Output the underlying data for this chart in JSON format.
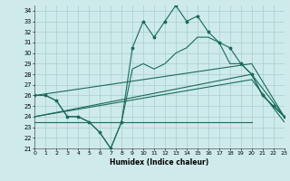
{
  "title": "",
  "xlabel": "Humidex (Indice chaleur)",
  "xlim": [
    0,
    23
  ],
  "ylim": [
    21,
    34.5
  ],
  "yticks": [
    21,
    22,
    23,
    24,
    25,
    26,
    27,
    28,
    29,
    30,
    31,
    32,
    33,
    34
  ],
  "xticks": [
    0,
    1,
    2,
    3,
    4,
    5,
    6,
    7,
    8,
    9,
    10,
    11,
    12,
    13,
    14,
    15,
    16,
    17,
    18,
    19,
    20,
    21,
    22,
    23
  ],
  "bg_color": "#ceeaea",
  "grid_color": "#aacece",
  "line_color": "#1a6b5a",
  "line1_x": [
    0,
    1,
    2,
    3,
    4,
    5,
    6,
    7,
    8,
    9,
    10,
    11,
    12,
    13,
    14,
    15,
    16,
    17,
    18,
    19,
    20,
    21,
    22,
    23
  ],
  "line1_y": [
    26.0,
    26.0,
    25.5,
    24.0,
    24.0,
    23.5,
    22.5,
    21.0,
    23.5,
    30.5,
    33.0,
    31.5,
    33.0,
    34.5,
    33.0,
    33.5,
    32.0,
    31.0,
    30.5,
    29.0,
    28.0,
    26.0,
    25.0,
    24.0
  ],
  "line2_x": [
    0,
    1,
    2,
    3,
    4,
    5,
    6,
    7,
    8,
    9,
    10,
    11,
    12,
    13,
    14,
    15,
    16,
    17,
    18,
    19,
    20,
    21,
    22,
    23
  ],
  "line2_y": [
    26.0,
    26.0,
    25.5,
    24.0,
    24.0,
    23.5,
    22.5,
    21.0,
    23.5,
    28.5,
    29.0,
    28.5,
    29.0,
    30.0,
    30.5,
    31.5,
    31.5,
    31.0,
    29.0,
    29.0,
    28.0,
    26.0,
    25.0,
    24.0
  ],
  "line3_x": [
    0,
    20,
    23
  ],
  "line3_y": [
    26.0,
    29.0,
    24.0
  ],
  "line4_x": [
    0,
    20,
    23
  ],
  "line4_y": [
    24.0,
    28.0,
    24.0
  ],
  "line5_x": [
    0,
    20,
    23
  ],
  "line5_y": [
    24.0,
    27.5,
    23.5
  ],
  "line6_x": [
    0,
    20
  ],
  "line6_y": [
    23.5,
    23.5
  ]
}
